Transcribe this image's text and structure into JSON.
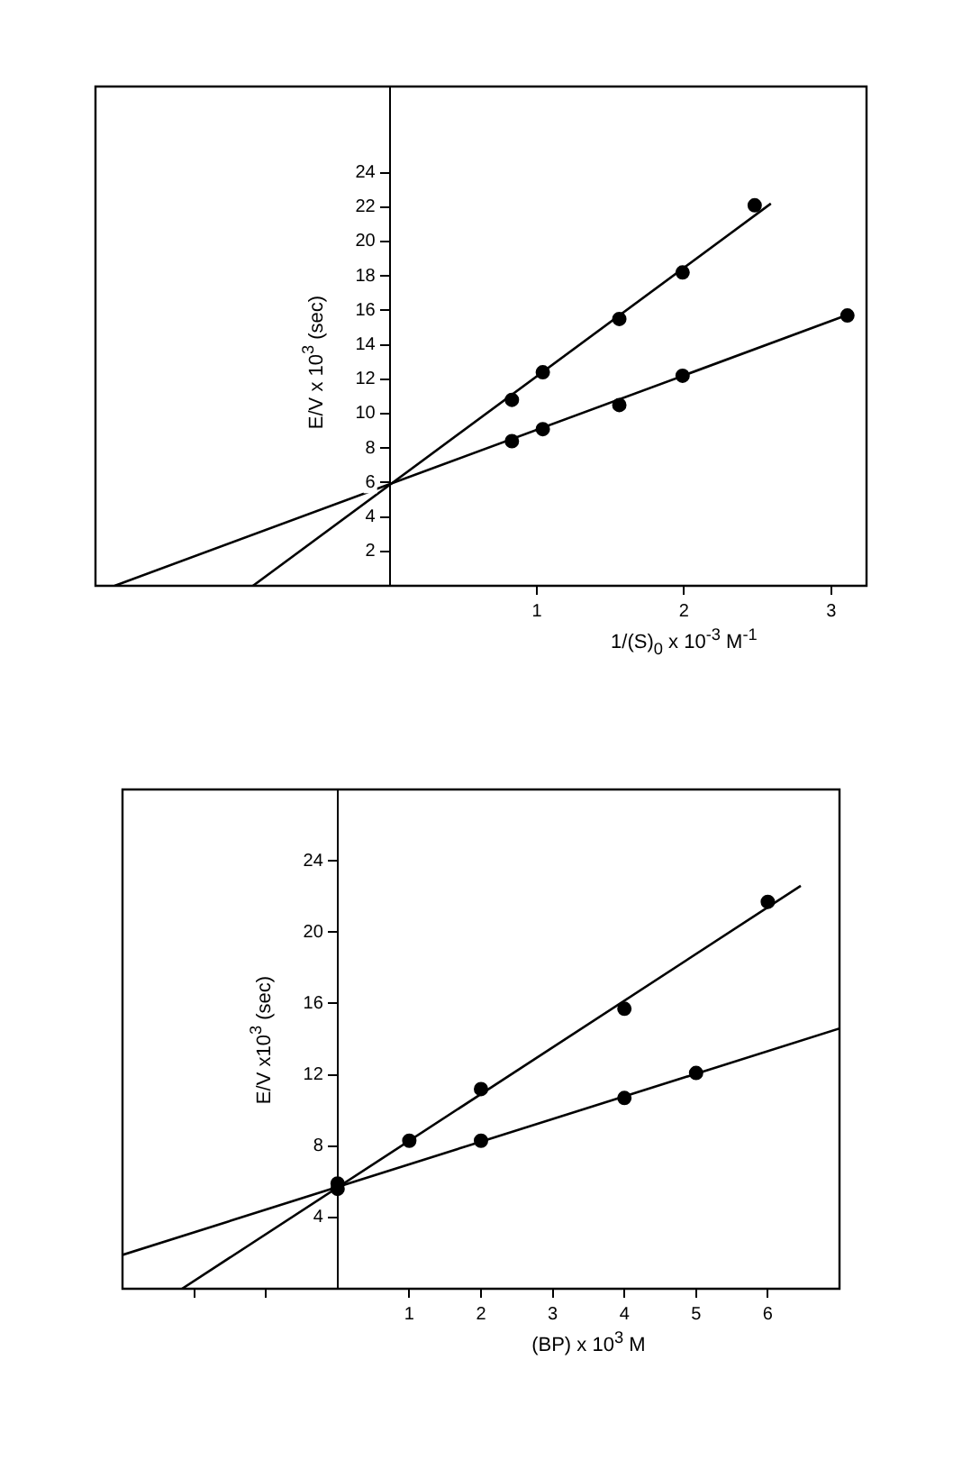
{
  "chart_data": [
    {
      "type": "scatter",
      "xlabel": "1/(S)$_{0}$ x 10$^{-3}$ M$^{-1}$",
      "ylabel": "E/V x 10$^{3}$ (sec)",
      "xlim": [
        -2,
        3.24
      ],
      "ylim": [
        0,
        29
      ],
      "xticks": [
        1,
        2,
        3
      ],
      "yticks": [
        2,
        4,
        6,
        8,
        10,
        12,
        14,
        16,
        18,
        20,
        22,
        24
      ],
      "grid": false,
      "legend": false,
      "series": [
        {
          "color": "#000000",
          "marker": "circle",
          "x": [
            0.83,
            1.04,
            1.56,
            1.99,
            2.48
          ],
          "values": [
            10.8,
            12.4,
            15.5,
            18.2,
            22.1
          ]
        },
        {
          "color": "#000000",
          "marker": "circle",
          "x": [
            0.83,
            1.04,
            1.56,
            1.99,
            3.11
          ],
          "values": [
            8.4,
            9.1,
            10.5,
            12.2,
            15.7
          ]
        },
        {
          "type": "line",
          "color": "#000000",
          "x": [
            -0.93,
            2.59
          ],
          "values": [
            0,
            22.2
          ]
        },
        {
          "type": "line",
          "color": "#000000",
          "x": [
            -1.87,
            3.1
          ],
          "values": [
            0,
            15.7
          ]
        }
      ]
    },
    {
      "type": "scatter",
      "xlabel": "(BP) x 10$^{3}$ M",
      "ylabel": "E/V x10$^{3}$ (sec)",
      "xlim": [
        -3,
        7
      ],
      "ylim": [
        0,
        28
      ],
      "xticks": [
        {
          "value": -2,
          "label": null
        },
        {
          "value": -1,
          "label": null
        },
        1,
        2,
        3,
        4,
        5,
        6
      ],
      "yticks": [
        4,
        8,
        12,
        16,
        20,
        24
      ],
      "grid": false,
      "legend": false,
      "series": [
        {
          "color": "#000000",
          "marker": "circle",
          "x": [
            0,
            1,
            2,
            4,
            6
          ],
          "values": [
            5.9,
            8.3,
            11.2,
            15.7,
            21.7
          ]
        },
        {
          "color": "#000000",
          "marker": "circle",
          "x": [
            0,
            2,
            4,
            5
          ],
          "values": [
            5.6,
            8.3,
            10.7,
            12.1
          ]
        },
        {
          "type": "line",
          "color": "#000000",
          "x": [
            -2.17,
            6.46
          ],
          "values": [
            0,
            22.6
          ]
        },
        {
          "type": "line",
          "color": "#000000",
          "x": [
            -3,
            7
          ],
          "values": [
            1.9,
            14.6
          ]
        }
      ]
    }
  ]
}
